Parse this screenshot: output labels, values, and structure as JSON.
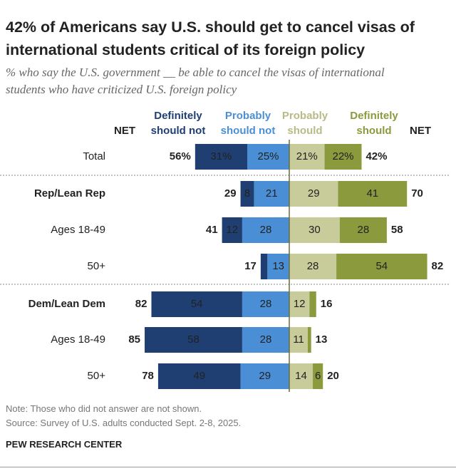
{
  "chart_data": {
    "type": "diverging-bar",
    "title": "42% of Americans say U.S. should get to cancel visas of international students critical of its foreign policy",
    "subtitle": "% who say the U.S. government __ be able to cancel the visas of international students who have criticized U.S. foreign policy",
    "categories": [
      "Total",
      "Rep/Lean Rep",
      "Ages 18-49",
      "50+",
      "Dem/Lean Dem",
      "Ages 18-49",
      "50+"
    ],
    "category_colors": [
      "#222222",
      "#b8453b",
      "#222222",
      "#222222",
      "#3d6a99",
      "#222222",
      "#222222"
    ],
    "series": [
      {
        "name": "Definitely should not",
        "color": "#1f3f73",
        "side": "negative",
        "values": [
          31,
          8,
          12,
          4,
          54,
          58,
          49
        ],
        "value_labels": [
          "31%",
          "8",
          "12",
          null,
          "54",
          "58",
          "49"
        ]
      },
      {
        "name": "Probably should not",
        "color": "#4a8fd6",
        "side": "negative",
        "values": [
          25,
          21,
          28,
          13,
          28,
          28,
          29
        ],
        "value_labels": [
          "25%",
          "21",
          "28",
          "13",
          "28",
          "28",
          "29"
        ]
      },
      {
        "name": "Probably should",
        "color": "#c8cc9a",
        "side": "positive",
        "values": [
          21,
          29,
          30,
          28,
          12,
          11,
          14
        ],
        "value_labels": [
          "21%",
          "29",
          "30",
          "28",
          "12",
          "11",
          "14"
        ]
      },
      {
        "name": "Definitely should",
        "color": "#8a9a3c",
        "side": "positive",
        "values": [
          22,
          41,
          28,
          54,
          4,
          2,
          6
        ],
        "value_labels": [
          "22%",
          "41",
          "28",
          "54",
          null,
          null,
          "6"
        ]
      }
    ],
    "net_label": "NET",
    "net_should_not": {
      "values": [
        56,
        29,
        41,
        17,
        82,
        85,
        78
      ],
      "value_labels": [
        "56%",
        "29",
        "41",
        "17",
        "82",
        "85",
        "78"
      ]
    },
    "net_should": {
      "values": [
        42,
        70,
        58,
        82,
        16,
        13,
        20
      ],
      "value_labels": [
        "42%",
        "70",
        "58",
        "82",
        "16",
        "13",
        "20"
      ]
    },
    "note": "Note: Those who did not answer are not shown.",
    "source": "Source: Survey of U.S. adults conducted Sept. 2-8, 2025.",
    "footer": "PEW RESEARCH CENTER"
  }
}
